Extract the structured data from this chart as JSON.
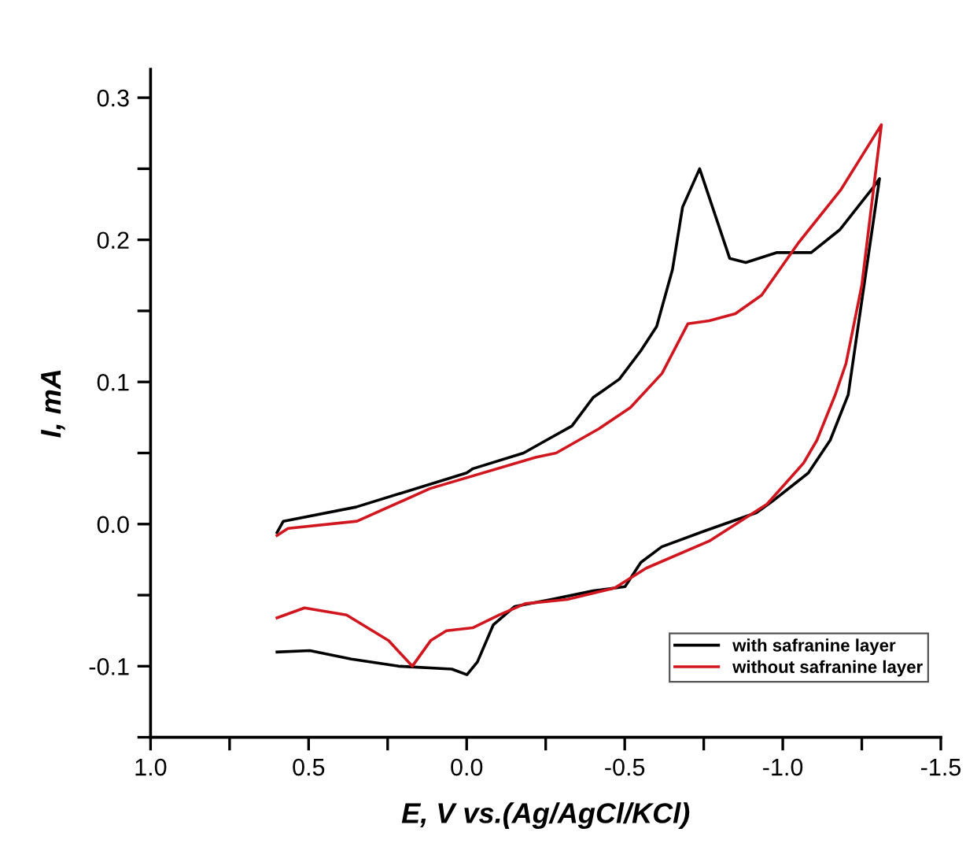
{
  "chart_data": {
    "type": "line",
    "xlabel": "E, V vs.(Ag/AgCl/KCl)",
    "ylabel": "I, mA",
    "xlim": [
      1.0,
      -1.5
    ],
    "ylim": [
      -0.15,
      0.32
    ],
    "xticks": [
      {
        "value": 1.0,
        "label": "1.0"
      },
      {
        "value": 0.75,
        "label": null
      },
      {
        "value": 0.5,
        "label": "0.5"
      },
      {
        "value": 0.25,
        "label": null
      },
      {
        "value": 0.0,
        "label": "0.0"
      },
      {
        "value": -0.25,
        "label": null
      },
      {
        "value": -0.5,
        "label": "-0.5"
      },
      {
        "value": -0.75,
        "label": null
      },
      {
        "value": -1.0,
        "label": "-1.0"
      },
      {
        "value": -1.25,
        "label": null
      },
      {
        "value": -1.5,
        "label": "-1.5"
      }
    ],
    "yticks": [
      {
        "value": -0.15,
        "label": null
      },
      {
        "value": -0.1,
        "label": "-0.1"
      },
      {
        "value": -0.05,
        "label": null
      },
      {
        "value": 0.0,
        "label": "0.0"
      },
      {
        "value": 0.05,
        "label": null
      },
      {
        "value": 0.1,
        "label": "0.1"
      },
      {
        "value": 0.15,
        "label": null
      },
      {
        "value": 0.2,
        "label": "0.2"
      },
      {
        "value": 0.25,
        "label": null
      },
      {
        "value": 0.3,
        "label": "0.3"
      }
    ],
    "grid": false,
    "legend": "bottom right",
    "marker": "none",
    "line_style": "solid",
    "series": [
      {
        "name": "with safranine layer",
        "color": "#000000",
        "x": [
          0.6,
          0.58,
          0.35,
          0.0,
          -0.02,
          -0.18,
          -0.252,
          -0.333,
          -0.4,
          -0.483,
          -0.551,
          -0.601,
          -0.651,
          -0.683,
          -0.737,
          -0.832,
          -0.883,
          -0.98,
          -1.09,
          -1.18,
          -1.29,
          -1.306,
          -1.207,
          -1.15,
          -1.081,
          -0.967,
          -0.917,
          -0.751,
          -0.617,
          -0.551,
          -0.501,
          -0.4,
          -0.268,
          -0.152,
          -0.084,
          -0.034,
          -0.001,
          0.047,
          0.215,
          0.365,
          0.496,
          0.6
        ],
        "values": [
          -0.006,
          0.002,
          0.012,
          0.036,
          0.039,
          0.05,
          0.059,
          0.069,
          0.089,
          0.102,
          0.122,
          0.139,
          0.179,
          0.223,
          0.25,
          0.187,
          0.184,
          0.191,
          0.191,
          0.207,
          0.238,
          0.243,
          0.091,
          0.059,
          0.036,
          0.016,
          0.008,
          -0.005,
          -0.016,
          -0.027,
          -0.044,
          -0.047,
          -0.053,
          -0.058,
          -0.071,
          -0.097,
          -0.106,
          -0.102,
          -0.1,
          -0.095,
          -0.089,
          -0.09
        ]
      },
      {
        "name": "without safranine layer",
        "color": "#d0161e",
        "x": [
          0.6,
          0.565,
          0.347,
          0.116,
          -0.218,
          -0.283,
          -0.418,
          -0.518,
          -0.618,
          -0.7,
          -0.767,
          -0.85,
          -0.933,
          -1.05,
          -1.183,
          -1.312,
          -1.25,
          -1.2,
          -1.166,
          -1.108,
          -1.066,
          -0.95,
          -0.767,
          -0.568,
          -0.468,
          -0.318,
          -0.185,
          -0.102,
          -0.019,
          0.064,
          0.114,
          0.172,
          0.247,
          0.38,
          0.513,
          0.6
        ],
        "values": [
          -0.008,
          -0.003,
          0.002,
          0.025,
          0.047,
          0.05,
          0.067,
          0.082,
          0.106,
          0.141,
          0.143,
          0.148,
          0.161,
          0.198,
          0.235,
          0.281,
          0.168,
          0.113,
          0.091,
          0.059,
          0.043,
          0.014,
          -0.012,
          -0.031,
          -0.045,
          -0.053,
          -0.056,
          -0.064,
          -0.073,
          -0.075,
          -0.082,
          -0.1,
          -0.082,
          -0.064,
          -0.059,
          -0.066
        ]
      }
    ]
  }
}
